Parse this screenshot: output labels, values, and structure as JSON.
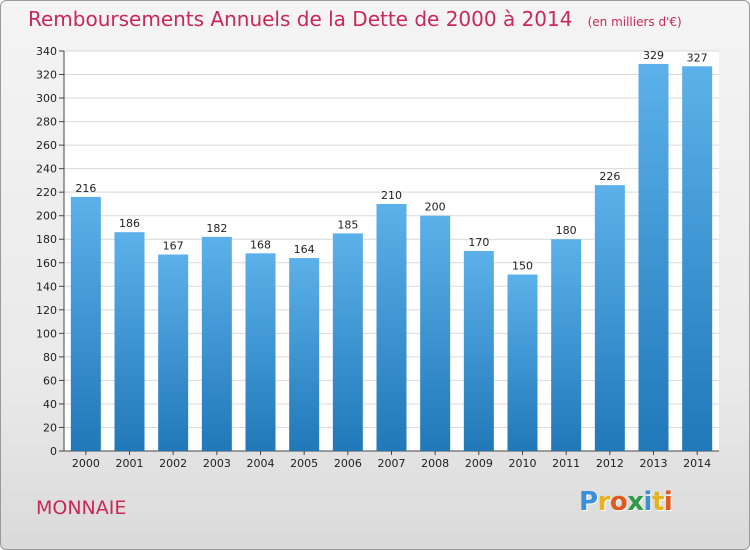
{
  "header": {
    "title": "Remboursements Annuels de la Dette de 2000 à 2014",
    "subtitle": "(en milliers d'€)"
  },
  "footer": {
    "commune": "MONNAIE",
    "logo_letters": [
      {
        "char": "P",
        "color": "#3a8fd6"
      },
      {
        "char": "r",
        "color": "#e7b321"
      },
      {
        "char": "o",
        "color": "#e05a1c"
      },
      {
        "char": "x",
        "color": "#2e9b46"
      },
      {
        "char": "i",
        "color": "#3a8fd6"
      },
      {
        "char": "t",
        "color": "#e7b321"
      },
      {
        "char": "i",
        "color": "#e05a1c"
      }
    ]
  },
  "colors": {
    "title": "#c8285a",
    "bar_top": "#5cb1ea",
    "bar_bottom": "#2178b8",
    "grid": "#d9d9d9"
  },
  "chart_data": {
    "type": "bar",
    "title": "Remboursements Annuels de la Dette de 2000 à 2014",
    "subtitle": "(en milliers d'€)",
    "xlabel": "",
    "ylabel": "",
    "categories": [
      "2000",
      "2001",
      "2002",
      "2003",
      "2004",
      "2005",
      "2006",
      "2007",
      "2008",
      "2009",
      "2010",
      "2011",
      "2012",
      "2013",
      "2014"
    ],
    "values": [
      216,
      186,
      167,
      182,
      168,
      164,
      185,
      210,
      200,
      170,
      150,
      180,
      226,
      329,
      327
    ],
    "ylim": [
      0,
      340
    ],
    "yticks": [
      0,
      20,
      40,
      60,
      80,
      100,
      120,
      140,
      160,
      180,
      200,
      220,
      240,
      260,
      280,
      300,
      320,
      340
    ],
    "grid": true,
    "legend": "none",
    "data_labels": true
  }
}
